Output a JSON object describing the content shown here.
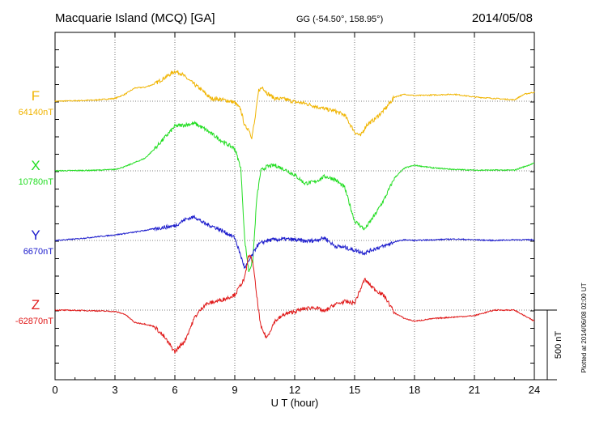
{
  "header": {
    "station": "Macquarie Island (MCQ)  [GA]",
    "coords": "GG (-54.50°, 158.95°)",
    "date": "2014/05/08"
  },
  "footer": {
    "plotted_at": "Plotted at 2014/06/08 02:00 UT"
  },
  "colors": {
    "F": "#f0b400",
    "X": "#22dd22",
    "Y": "#1a1acc",
    "Z": "#e01a1a"
  },
  "chart_data": {
    "type": "line",
    "xlabel": "U T (hour)",
    "xlim": [
      0,
      24
    ],
    "x_ticks": [
      "0",
      "3",
      "6",
      "9",
      "12",
      "15",
      "18",
      "21",
      "24"
    ],
    "scale_bar_label": "500 nT",
    "scale_bar_value_nT": 500,
    "series": [
      {
        "name": "F",
        "baseline_label": "64140nT",
        "x": [
          0,
          1,
          2,
          3,
          3.5,
          4,
          4.5,
          5,
          5.5,
          6,
          6.3,
          6.8,
          7.3,
          7.8,
          8.2,
          8.6,
          9.0,
          9.3,
          9.5,
          9.7,
          9.85,
          10.0,
          10.2,
          10.4,
          10.6,
          11.0,
          11.5,
          12.0,
          12.5,
          13.0,
          13.5,
          14.0,
          14.5,
          15.0,
          15.3,
          15.6,
          16.0,
          16.5,
          17.0,
          17.5,
          18,
          19,
          20,
          21,
          22,
          23,
          23.5,
          24
        ],
        "y": [
          0,
          3,
          8,
          20,
          50,
          95,
          100,
          125,
          170,
          215,
          200,
          140,
          85,
          20,
          15,
          5,
          -10,
          -60,
          -180,
          -200,
          -260,
          -140,
          80,
          100,
          60,
          20,
          15,
          -5,
          -15,
          -35,
          -55,
          -70,
          -100,
          -220,
          -250,
          -170,
          -130,
          -60,
          30,
          50,
          40,
          45,
          50,
          30,
          20,
          10,
          50,
          65
        ]
      },
      {
        "name": "X",
        "baseline_label": "10780nT",
        "x": [
          0,
          1,
          2,
          3,
          3.5,
          4,
          4.5,
          5,
          5.5,
          6,
          6.5,
          7,
          7.5,
          8,
          8.5,
          9,
          9.3,
          9.5,
          9.7,
          9.9,
          10.1,
          10.3,
          10.6,
          11,
          11.5,
          12,
          12.5,
          13,
          13.5,
          14,
          14.5,
          15,
          15.5,
          16,
          16.5,
          17,
          17.5,
          18,
          19,
          20,
          21,
          22,
          23,
          23.5,
          24
        ],
        "y": [
          0,
          2,
          4,
          10,
          30,
          60,
          90,
          160,
          240,
          320,
          330,
          340,
          300,
          250,
          200,
          160,
          20,
          -500,
          -720,
          -650,
          -200,
          0,
          30,
          40,
          10,
          -30,
          -90,
          -80,
          -40,
          -60,
          -120,
          -360,
          -420,
          -320,
          -200,
          -50,
          20,
          40,
          20,
          10,
          5,
          5,
          5,
          30,
          55
        ]
      },
      {
        "name": "Y",
        "baseline_label": "6670nT",
        "x": [
          0,
          1,
          2,
          3,
          4,
          5,
          6,
          6.5,
          7,
          7.5,
          8,
          8.5,
          9.0,
          9.3,
          9.5,
          9.7,
          9.9,
          10.1,
          10.3,
          10.6,
          11,
          11.5,
          12,
          12.5,
          13,
          13.5,
          14,
          14.5,
          15,
          15.5,
          16,
          16.5,
          17,
          17.5,
          18,
          19,
          20,
          21,
          22,
          23,
          24
        ],
        "y": [
          0,
          10,
          25,
          40,
          60,
          85,
          105,
          150,
          170,
          120,
          95,
          60,
          20,
          -110,
          -200,
          -150,
          -100,
          -40,
          -20,
          0,
          5,
          10,
          5,
          -5,
          0,
          20,
          -40,
          -50,
          -70,
          -90,
          -60,
          -40,
          -10,
          5,
          0,
          5,
          10,
          5,
          0,
          5,
          5
        ]
      },
      {
        "name": "Z",
        "baseline_label": "-62870nT",
        "x": [
          0,
          1,
          2,
          3,
          3.5,
          4,
          4.5,
          5,
          5.5,
          6,
          6.5,
          7,
          7.5,
          8,
          8.5,
          9,
          9.5,
          9.7,
          9.9,
          10.1,
          10.3,
          10.6,
          11,
          11.5,
          12,
          12.5,
          13,
          13.5,
          14,
          14.5,
          15,
          15.5,
          16,
          16.5,
          17,
          17.5,
          18,
          19,
          20,
          21,
          22,
          23,
          24
        ],
        "y": [
          0,
          -2,
          -5,
          -10,
          -30,
          -90,
          -100,
          -120,
          -200,
          -300,
          -220,
          -50,
          40,
          60,
          80,
          110,
          230,
          400,
          350,
          100,
          -120,
          -200,
          -80,
          -30,
          -10,
          10,
          20,
          -10,
          40,
          60,
          50,
          220,
          150,
          100,
          -20,
          -60,
          -80,
          -60,
          -50,
          -40,
          0,
          0,
          -80
        ]
      }
    ]
  }
}
